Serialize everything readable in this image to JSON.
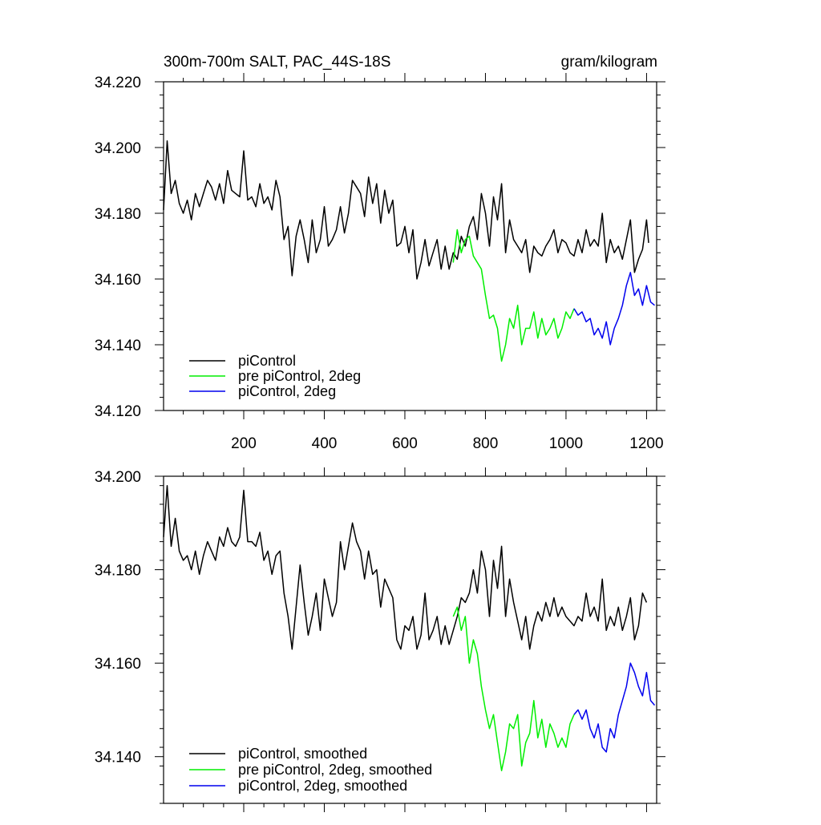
{
  "chart_data": [
    {
      "type": "line",
      "title": "300m-700m SALT, PAC_44S-18S",
      "units": "gram/kilogram",
      "xlim": [
        1,
        1225
      ],
      "ylim": [
        34.12,
        34.22
      ],
      "x_ticks": [
        200,
        400,
        600,
        800,
        1000,
        1200
      ],
      "x_tick_labels": [
        "200",
        "400",
        "600",
        "800",
        "1000",
        "1200"
      ],
      "y_ticks": [
        34.12,
        34.14,
        34.16,
        34.18,
        34.2,
        34.22
      ],
      "y_tick_labels": [
        "34.120",
        "34.140",
        "34.160",
        "34.180",
        "34.200",
        "34.220"
      ],
      "legend_position": "bottom-left",
      "series": [
        {
          "name": "piControl",
          "color": "#000000",
          "x": [
            1,
            10,
            20,
            30,
            40,
            50,
            60,
            70,
            80,
            90,
            100,
            110,
            120,
            130,
            140,
            150,
            160,
            170,
            180,
            190,
            200,
            210,
            220,
            230,
            240,
            250,
            260,
            270,
            280,
            290,
            300,
            310,
            320,
            330,
            340,
            350,
            360,
            370,
            380,
            390,
            400,
            410,
            420,
            430,
            440,
            450,
            460,
            470,
            480,
            490,
            500,
            510,
            520,
            530,
            540,
            550,
            560,
            570,
            580,
            590,
            600,
            610,
            620,
            630,
            640,
            650,
            660,
            670,
            680,
            690,
            700,
            710,
            720,
            730,
            740,
            750,
            760,
            770,
            780,
            790,
            800,
            810,
            820,
            830,
            840,
            850,
            860,
            870,
            880,
            890,
            900,
            910,
            920,
            930,
            940,
            950,
            960,
            970,
            980,
            990,
            1000,
            1010,
            1020,
            1030,
            1040,
            1050,
            1060,
            1070,
            1080,
            1090,
            1100,
            1110,
            1120,
            1130,
            1140,
            1150,
            1160,
            1170,
            1180,
            1190,
            1200,
            1205
          ],
          "values": [
            34.181,
            34.202,
            34.186,
            34.19,
            34.183,
            34.18,
            34.184,
            34.178,
            34.186,
            34.182,
            34.186,
            34.19,
            34.188,
            34.184,
            34.189,
            34.183,
            34.193,
            34.187,
            34.186,
            34.185,
            34.199,
            34.184,
            34.185,
            34.182,
            34.189,
            34.183,
            34.185,
            34.181,
            34.19,
            34.185,
            34.172,
            34.176,
            34.161,
            34.173,
            34.178,
            34.172,
            34.165,
            34.178,
            34.168,
            34.172,
            34.182,
            34.17,
            34.172,
            34.175,
            34.182,
            34.174,
            34.18,
            34.19,
            34.188,
            34.186,
            34.179,
            34.191,
            34.183,
            34.189,
            34.177,
            34.187,
            34.18,
            34.184,
            34.17,
            34.171,
            34.176,
            34.168,
            34.175,
            34.16,
            34.165,
            34.172,
            34.164,
            34.168,
            34.172,
            34.163,
            34.17,
            34.163,
            34.168,
            34.166,
            34.173,
            34.17,
            34.176,
            34.179,
            34.172,
            34.186,
            34.18,
            34.17,
            34.185,
            34.178,
            34.189,
            34.168,
            34.178,
            34.172,
            34.17,
            34.168,
            34.172,
            34.162,
            34.17,
            34.168,
            34.167,
            34.17,
            34.172,
            34.175,
            34.168,
            34.172,
            34.171,
            34.168,
            34.167,
            34.172,
            34.168,
            34.175,
            34.17,
            34.172,
            34.17,
            34.18,
            34.165,
            34.172,
            34.168,
            34.17,
            34.166,
            34.172,
            34.178,
            34.162,
            34.166,
            34.169,
            34.178,
            34.171
          ]
        },
        {
          "name": "pre piControl, 2deg",
          "color": "#00ee00",
          "x": [
            720,
            730,
            740,
            750,
            760,
            770,
            780,
            790,
            800,
            810,
            820,
            830,
            840,
            850,
            860,
            870,
            880,
            890,
            900,
            910,
            920,
            930,
            940,
            950,
            960,
            970,
            980,
            990,
            1000,
            1010,
            1020
          ],
          "values": [
            34.165,
            34.175,
            34.168,
            34.172,
            34.173,
            34.167,
            34.165,
            34.163,
            34.155,
            34.148,
            34.149,
            34.145,
            34.135,
            34.14,
            34.148,
            34.145,
            34.152,
            34.14,
            34.145,
            34.145,
            34.15,
            34.142,
            34.148,
            34.143,
            34.145,
            34.148,
            34.142,
            34.145,
            34.15,
            34.148,
            34.151
          ]
        },
        {
          "name": "piControl, 2deg",
          "color": "#0000ee",
          "x": [
            1020,
            1030,
            1040,
            1050,
            1060,
            1070,
            1080,
            1090,
            1100,
            1110,
            1120,
            1130,
            1140,
            1150,
            1160,
            1170,
            1180,
            1190,
            1200,
            1210,
            1220
          ],
          "values": [
            34.151,
            34.149,
            34.15,
            34.147,
            34.148,
            34.143,
            34.145,
            34.142,
            34.147,
            34.14,
            34.145,
            34.148,
            34.152,
            34.158,
            34.162,
            34.155,
            34.157,
            34.152,
            34.158,
            34.153,
            34.152
          ]
        }
      ]
    },
    {
      "type": "line",
      "xlim": [
        1,
        1225
      ],
      "ylim": [
        34.13,
        34.2
      ],
      "y_ticks": [
        34.14,
        34.16,
        34.18,
        34.2
      ],
      "y_tick_labels": [
        "34.140",
        "34.160",
        "34.180",
        "34.200"
      ],
      "legend_position": "bottom-left",
      "series": [
        {
          "name": "piControl, smoothed",
          "color": "#000000",
          "x": [
            1,
            10,
            20,
            30,
            40,
            50,
            60,
            70,
            80,
            90,
            100,
            110,
            120,
            130,
            140,
            150,
            160,
            170,
            180,
            190,
            200,
            210,
            220,
            230,
            240,
            250,
            260,
            270,
            280,
            290,
            300,
            310,
            320,
            330,
            340,
            350,
            360,
            370,
            380,
            390,
            400,
            410,
            420,
            430,
            440,
            450,
            460,
            470,
            480,
            490,
            500,
            510,
            520,
            530,
            540,
            550,
            560,
            570,
            580,
            590,
            600,
            610,
            620,
            630,
            640,
            650,
            660,
            670,
            680,
            690,
            700,
            710,
            720,
            730,
            740,
            750,
            760,
            770,
            780,
            790,
            800,
            810,
            820,
            830,
            840,
            850,
            860,
            870,
            880,
            890,
            900,
            910,
            920,
            930,
            940,
            950,
            960,
            970,
            980,
            990,
            1000,
            1010,
            1020,
            1030,
            1040,
            1050,
            1060,
            1070,
            1080,
            1090,
            1100,
            1110,
            1120,
            1130,
            1140,
            1150,
            1160,
            1170,
            1180,
            1190,
            1200
          ],
          "values": [
            34.187,
            34.198,
            34.185,
            34.191,
            34.184,
            34.182,
            34.183,
            34.18,
            34.184,
            34.179,
            34.183,
            34.186,
            34.184,
            34.182,
            34.187,
            34.185,
            34.189,
            34.186,
            34.185,
            34.187,
            34.197,
            34.186,
            34.186,
            34.185,
            34.188,
            34.182,
            34.184,
            34.179,
            34.183,
            34.184,
            34.175,
            34.17,
            34.163,
            34.172,
            34.181,
            34.173,
            34.166,
            34.17,
            34.175,
            34.167,
            34.178,
            34.174,
            34.17,
            34.173,
            34.186,
            34.18,
            34.185,
            34.19,
            34.186,
            34.184,
            34.178,
            34.184,
            34.179,
            34.18,
            34.172,
            34.178,
            34.176,
            34.174,
            34.165,
            34.163,
            34.168,
            34.167,
            34.17,
            34.163,
            34.166,
            34.175,
            34.165,
            34.167,
            34.17,
            34.164,
            34.168,
            34.164,
            34.167,
            34.17,
            34.174,
            34.173,
            34.175,
            34.18,
            34.175,
            34.184,
            34.18,
            34.17,
            34.182,
            34.176,
            34.185,
            34.17,
            34.178,
            34.173,
            34.169,
            34.165,
            34.17,
            34.163,
            34.168,
            34.171,
            34.169,
            34.173,
            34.17,
            34.174,
            34.17,
            34.172,
            34.17,
            34.169,
            34.168,
            34.17,
            34.169,
            34.175,
            34.17,
            34.172,
            34.169,
            34.178,
            34.167,
            34.17,
            34.168,
            34.172,
            34.167,
            34.17,
            34.174,
            34.165,
            34.168,
            34.175,
            34.173
          ]
        },
        {
          "name": "pre piControl, 2deg, smoothed",
          "color": "#00ee00",
          "x": [
            720,
            730,
            740,
            750,
            760,
            770,
            780,
            790,
            800,
            810,
            820,
            830,
            840,
            850,
            860,
            870,
            880,
            890,
            900,
            910,
            920,
            930,
            940,
            950,
            960,
            970,
            980,
            990,
            1000,
            1010,
            1020
          ],
          "values": [
            34.17,
            34.172,
            34.167,
            34.17,
            34.16,
            34.165,
            34.162,
            34.155,
            34.15,
            34.146,
            34.149,
            34.143,
            34.137,
            34.141,
            34.147,
            34.146,
            34.149,
            34.138,
            34.143,
            34.145,
            34.152,
            34.144,
            34.148,
            34.142,
            34.147,
            34.145,
            34.142,
            34.144,
            34.142,
            34.147,
            34.149
          ]
        },
        {
          "name": "piControl, 2deg, smoothed",
          "color": "#0000ee",
          "x": [
            1020,
            1030,
            1040,
            1050,
            1060,
            1070,
            1080,
            1090,
            1100,
            1110,
            1120,
            1130,
            1140,
            1150,
            1160,
            1170,
            1180,
            1190,
            1200,
            1210,
            1220
          ],
          "values": [
            34.149,
            34.15,
            34.148,
            34.15,
            34.146,
            34.144,
            34.147,
            34.142,
            34.141,
            34.146,
            34.144,
            34.149,
            34.152,
            34.155,
            34.16,
            34.158,
            34.155,
            34.153,
            34.158,
            34.152,
            34.151
          ]
        }
      ]
    }
  ]
}
